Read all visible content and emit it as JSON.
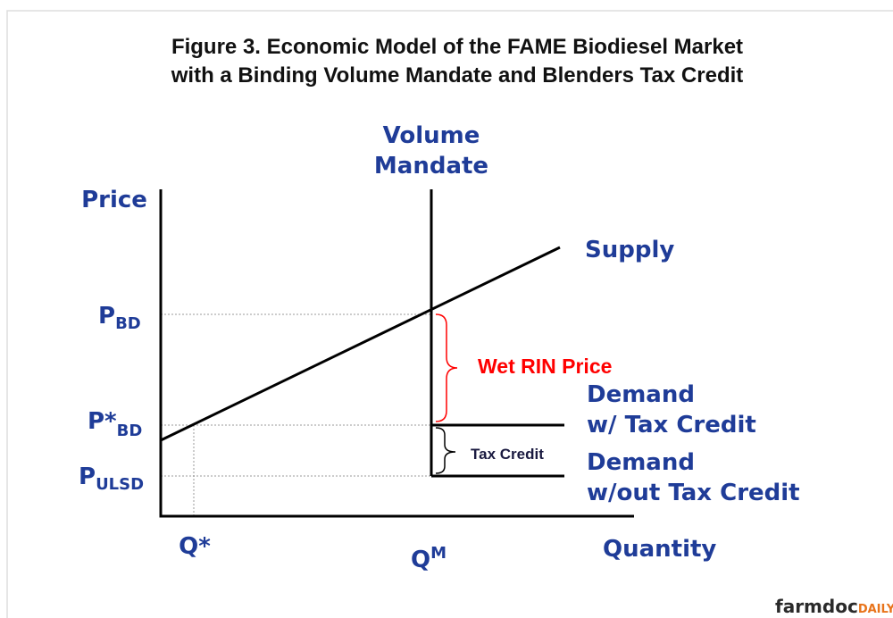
{
  "title": [
    "Figure 3. Economic Model of the FAME Biodiesel Market",
    "with a Binding Volume Mandate and Blenders Tax Credit"
  ],
  "mandate_label": [
    "Volume",
    "Mandate"
  ],
  "y_axis_label": "Price",
  "x_axis_label": "Quantity",
  "supply_label": "Supply",
  "price_labels": [
    {
      "main": "P",
      "sub": "BD"
    },
    {
      "main": "P*",
      "sub": "BD"
    },
    {
      "main": "P",
      "sub": "ULSD"
    }
  ],
  "quantity_labels": [
    {
      "main": "Q*"
    },
    {
      "main": "Q",
      "sup": "M"
    }
  ],
  "wet_rin_label": "Wet RIN Price",
  "tax_credit_label": "Tax Credit",
  "demand_labels": [
    [
      "Demand",
      "w/ Tax Credit"
    ],
    [
      "Demand",
      "w/out Tax Credit"
    ]
  ],
  "logo": {
    "main": "farmdoc",
    "accent": "DAILY"
  }
}
